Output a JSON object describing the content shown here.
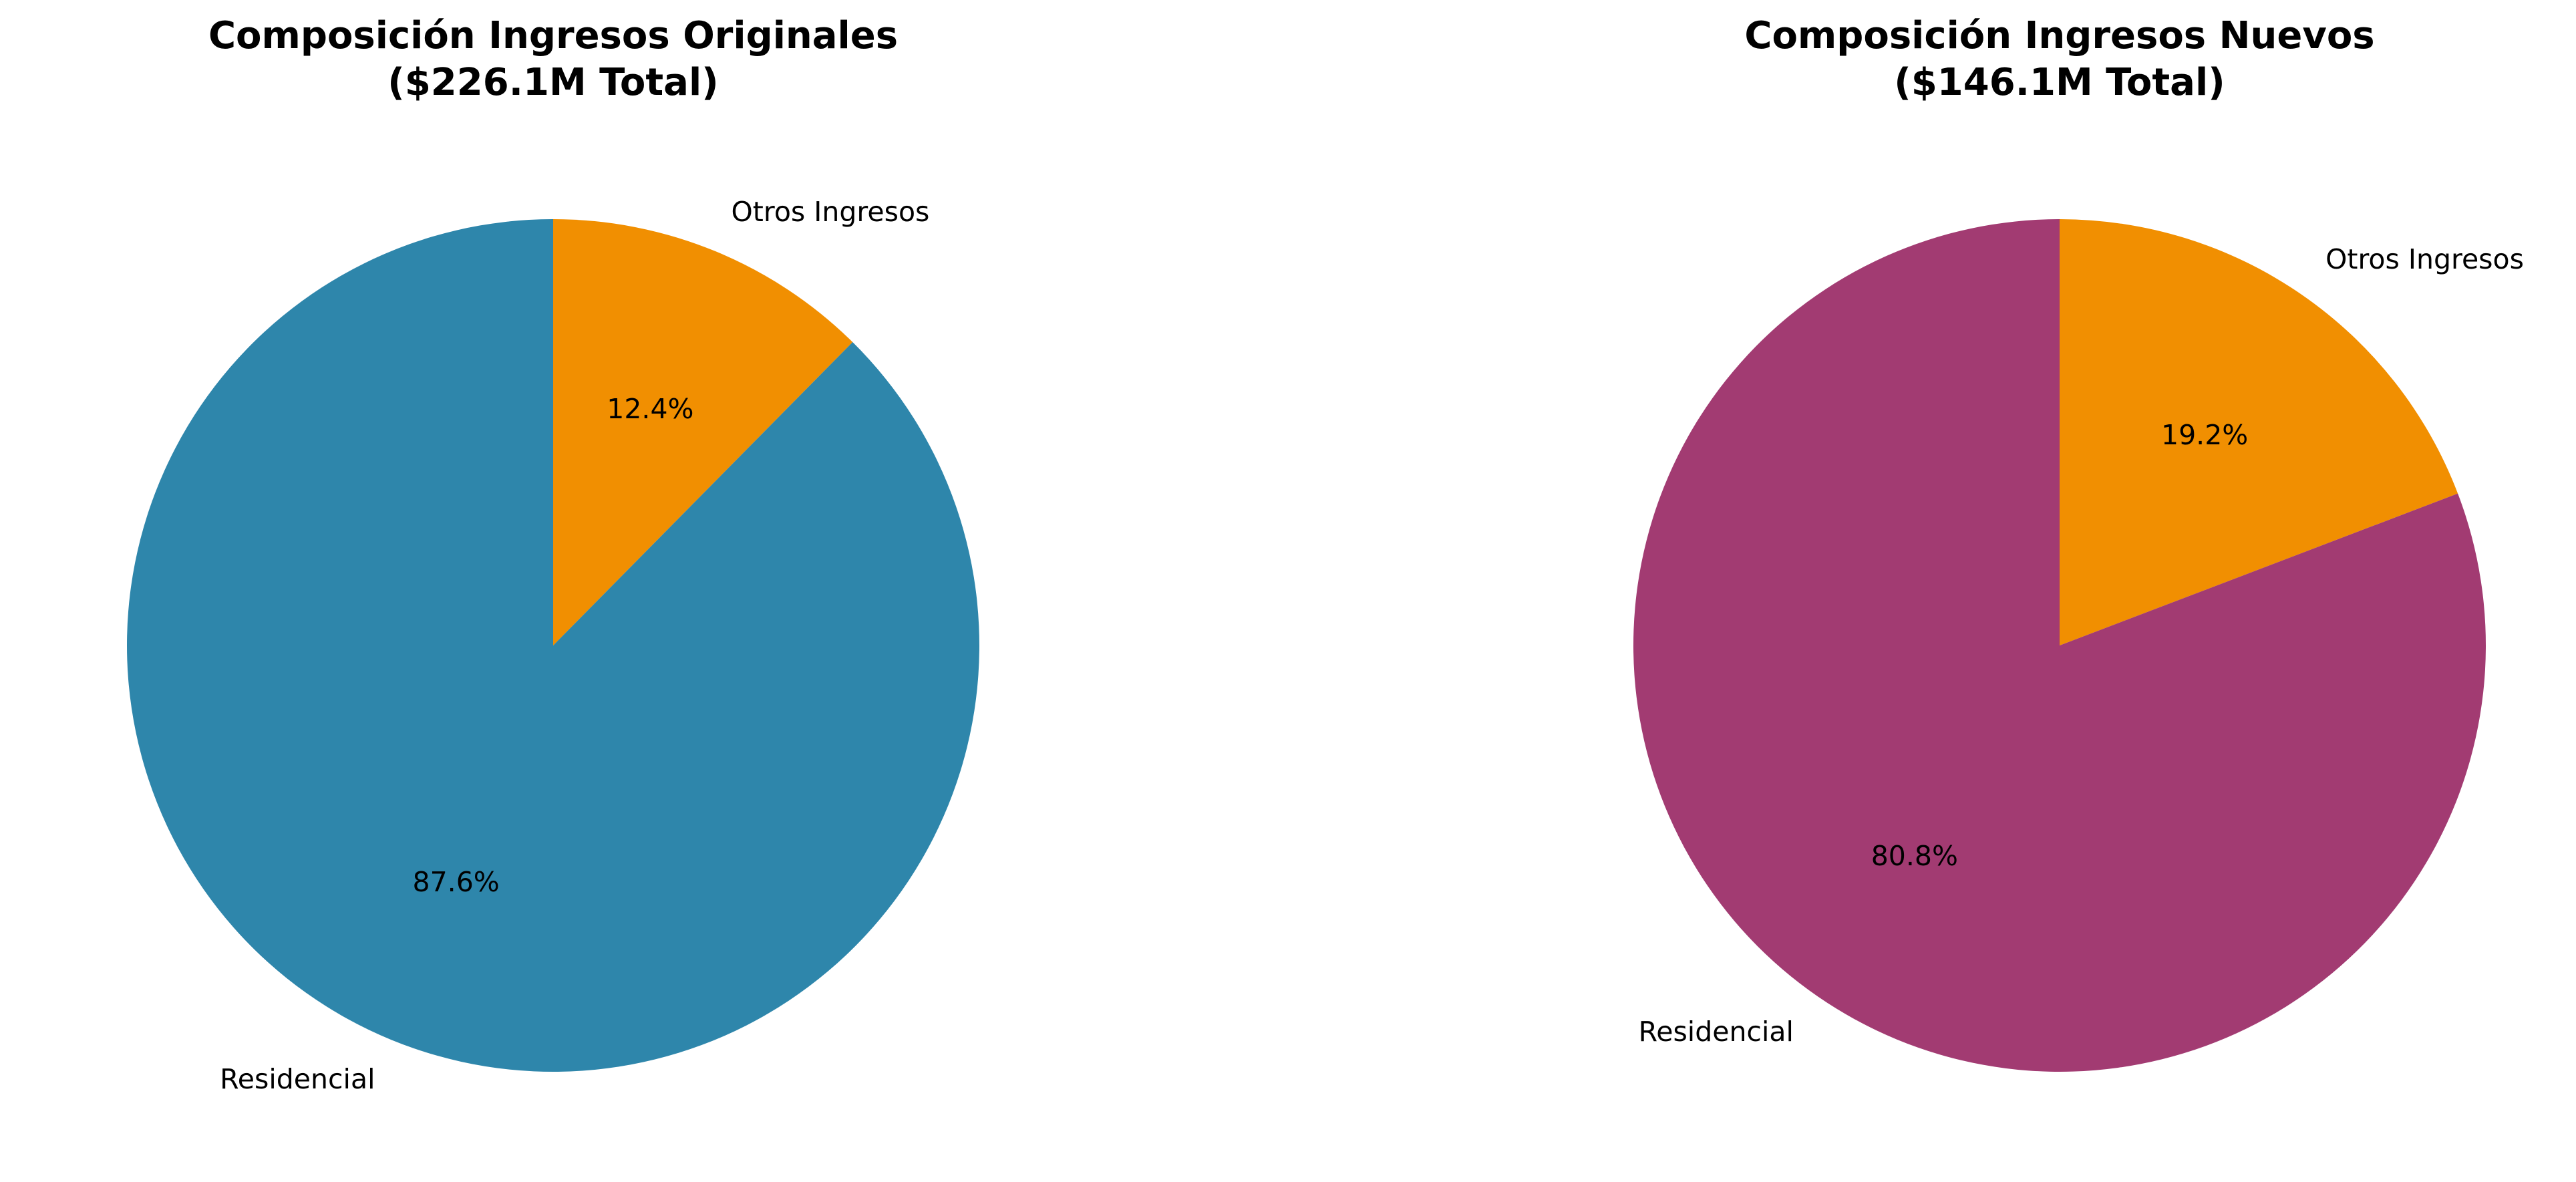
{
  "chart_data": [
    {
      "type": "pie",
      "title_lines": [
        "Composición Ingresos Originales",
        "($226.1M Total)"
      ],
      "slices": [
        {
          "label": "Otros Ingresos",
          "value": 12.4,
          "pct_label": "12.4%",
          "color": "#F18F01"
        },
        {
          "label": "Residencial",
          "value": 87.6,
          "pct_label": "87.6%",
          "color": "#2E86AB"
        }
      ]
    },
    {
      "type": "pie",
      "title_lines": [
        "Composición Ingresos Nuevos",
        "($146.1M Total)"
      ],
      "slices": [
        {
          "label": "Otros Ingresos",
          "value": 19.2,
          "pct_label": "19.2%",
          "color": "#F18F01"
        },
        {
          "label": "Residencial",
          "value": 80.8,
          "pct_label": "80.8%",
          "color": "#A23B72"
        }
      ]
    }
  ]
}
